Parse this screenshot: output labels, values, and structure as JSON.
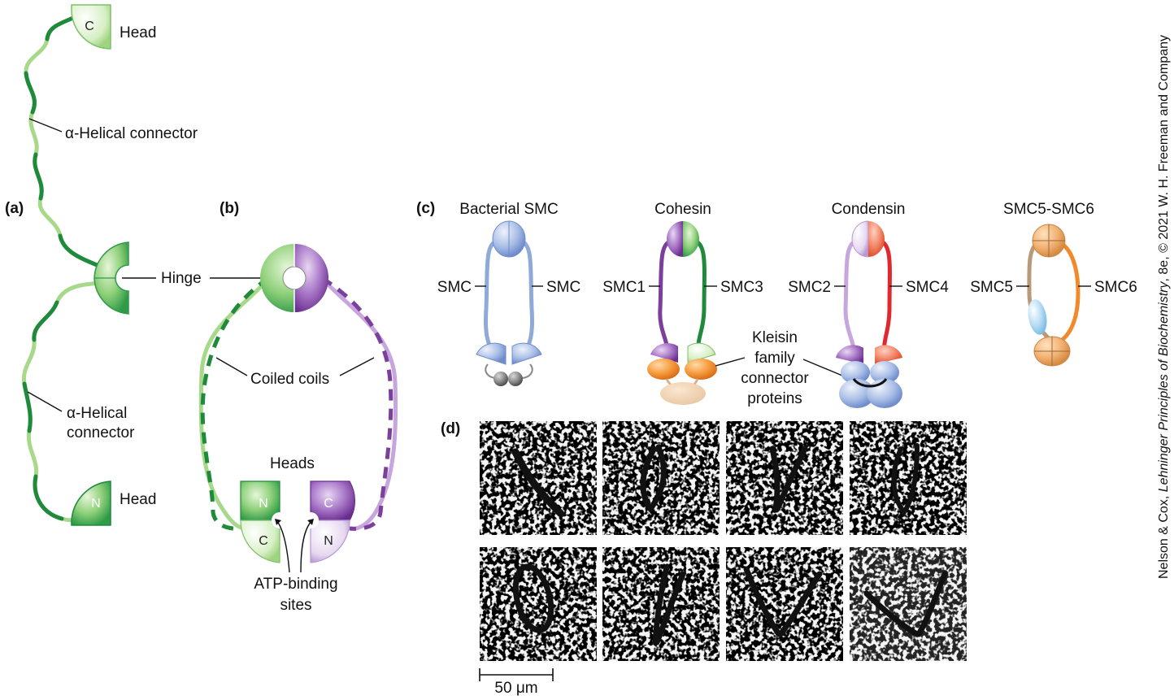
{
  "panels": {
    "a": "(a)",
    "b": "(b)",
    "c": "(c)",
    "d": "(d)"
  },
  "panel_a": {
    "head_top_letter": "C",
    "head_top": "Head",
    "connector_top": "α-Helical connector",
    "hinge": "Hinge",
    "connector_bottom_line1": "α-Helical",
    "connector_bottom_line2": "connector",
    "head_bottom_letter": "N",
    "head_bottom": "Head"
  },
  "panel_b": {
    "coiled_coils": "Coiled coils",
    "heads": "Heads",
    "head_left_top": "N",
    "head_left_bottom": "C",
    "head_right_top": "C",
    "head_right_bottom": "N",
    "atp_line1": "ATP-binding",
    "atp_line2": "sites"
  },
  "panel_c": {
    "complexes": [
      {
        "title": "Bacterial SMC",
        "left": "SMC",
        "right": "SMC"
      },
      {
        "title": "Cohesin",
        "left": "SMC1",
        "right": "SMC3"
      },
      {
        "title": "Condensin",
        "left": "SMC2",
        "right": "SMC4"
      },
      {
        "title": "SMC5-SMC6",
        "left": "SMC5",
        "right": "SMC6"
      }
    ],
    "kleisin": [
      "Kleisin",
      "family",
      "connector",
      "proteins"
    ]
  },
  "panel_d": {
    "scale_bar": "50 μm"
  },
  "credit": {
    "part1": "Nelson & Cox, ",
    "part2": "Lehninger Principles of Biochemistry",
    "part3": ", 8e, © 2021 W. H. Freeman and Company"
  },
  "colors": {
    "green_dark": "#1f8a3c",
    "green_light": "#a8d98a",
    "purple_dark": "#7b3f9c",
    "purple_light": "#c6a6dc",
    "blue": "#8fa9d8",
    "orange": "#f08a2a",
    "red": "#e0282e",
    "tan": "#b89a7a"
  }
}
